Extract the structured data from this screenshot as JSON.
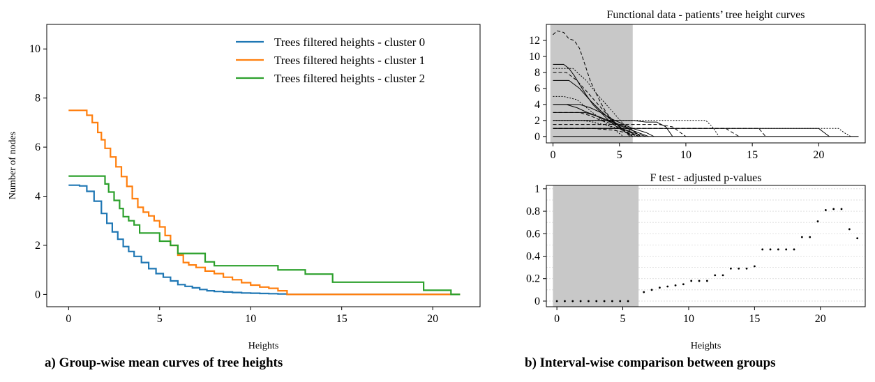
{
  "captions": {
    "a": "a) Group-wise mean curves of tree heights",
    "b": "b) Interval-wise comparison between groups"
  },
  "chart_data": [
    {
      "type": "line",
      "title": "",
      "xlabel": "Heights",
      "ylabel": "Number of nodes",
      "xlim": [
        -1.2,
        22.6
      ],
      "ylim": [
        -0.5,
        11.0
      ],
      "xticks": [
        0,
        5,
        10,
        15,
        20
      ],
      "yticks": [
        0,
        2,
        4,
        6,
        8,
        10
      ],
      "grid": false,
      "legend": "top-right",
      "series": [
        {
          "name": "Trees filtered heights - cluster 0",
          "color": "#1f77b4",
          "x": [
            0,
            0.6,
            1.0,
            1.4,
            1.8,
            2.1,
            2.4,
            2.7,
            3.0,
            3.3,
            3.6,
            4.0,
            4.4,
            4.8,
            5.2,
            5.6,
            6.0,
            6.4,
            6.8,
            7.2,
            7.6,
            8.0,
            8.5,
            9.0,
            9.5,
            10.0,
            10.5,
            11.0,
            11.5,
            12.0,
            21.5
          ],
          "y": [
            4.45,
            4.42,
            4.2,
            3.8,
            3.3,
            2.9,
            2.55,
            2.25,
            1.95,
            1.75,
            1.55,
            1.3,
            1.05,
            0.85,
            0.7,
            0.55,
            0.4,
            0.33,
            0.27,
            0.2,
            0.15,
            0.12,
            0.1,
            0.08,
            0.06,
            0.05,
            0.04,
            0.03,
            0.02,
            0.0,
            0.0
          ]
        },
        {
          "name": "Trees filtered heights - cluster 1",
          "color": "#ff7f0e",
          "x": [
            0,
            0.8,
            1.0,
            1.3,
            1.6,
            1.8,
            2.0,
            2.3,
            2.6,
            2.9,
            3.2,
            3.5,
            3.8,
            4.1,
            4.4,
            4.7,
            5.0,
            5.3,
            5.6,
            6.0,
            6.3,
            6.6,
            7.0,
            7.5,
            8.0,
            8.5,
            9.0,
            9.5,
            10.0,
            10.5,
            11.0,
            11.5,
            12.0,
            21.5
          ],
          "y": [
            7.5,
            7.5,
            7.3,
            7.0,
            6.6,
            6.3,
            5.95,
            5.6,
            5.2,
            4.8,
            4.4,
            3.9,
            3.55,
            3.35,
            3.2,
            3.0,
            2.75,
            2.4,
            2.0,
            1.6,
            1.3,
            1.2,
            1.1,
            0.95,
            0.85,
            0.7,
            0.6,
            0.48,
            0.38,
            0.3,
            0.25,
            0.15,
            0.0,
            0.0
          ]
        },
        {
          "name": "Trees filtered heights - cluster 2",
          "color": "#2ca02c",
          "x": [
            0,
            1.7,
            2.0,
            2.2,
            2.5,
            2.8,
            3.0,
            3.3,
            3.6,
            3.9,
            4.5,
            5.0,
            5.6,
            6.0,
            7.0,
            7.5,
            8.0,
            9.0,
            10.0,
            11.0,
            11.5,
            12.5,
            13.0,
            14.0,
            14.5,
            16.0,
            19.0,
            19.5,
            20.5,
            21.0,
            21.5
          ],
          "y": [
            4.82,
            4.82,
            4.5,
            4.17,
            3.83,
            3.5,
            3.17,
            3.0,
            2.83,
            2.5,
            2.5,
            2.17,
            2.0,
            1.67,
            1.67,
            1.33,
            1.17,
            1.17,
            1.17,
            1.17,
            1.0,
            1.0,
            0.83,
            0.83,
            0.5,
            0.5,
            0.5,
            0.17,
            0.17,
            0.0,
            0.0
          ]
        }
      ]
    },
    {
      "type": "line",
      "title": "Functional data - patients’ tree height curves",
      "xlabel": "",
      "ylabel": "",
      "xlim": [
        -0.5,
        23.5
      ],
      "ylim": [
        -0.8,
        14.0
      ],
      "xticks": [
        0,
        5,
        10,
        15,
        20
      ],
      "yticks": [
        0,
        2,
        4,
        6,
        8,
        10,
        12
      ],
      "grid": false,
      "legend": "none",
      "shaded_interval": [
        -0.2,
        6.0
      ],
      "curves": [
        {
          "style": "dashed",
          "x": [
            0,
            0.3,
            0.8,
            1.2,
            1.6,
            2.0,
            2.4,
            2.8,
            3.2,
            3.6,
            4.0,
            4.5,
            5.0,
            5.5,
            6.0,
            6.5
          ],
          "y": [
            12.7,
            13.2,
            13.0,
            12.2,
            12.0,
            11.0,
            9.0,
            7.0,
            5.5,
            4.2,
            3.0,
            2.0,
            1.3,
            0.6,
            0.2,
            0
          ]
        },
        {
          "style": "solid",
          "x": [
            0,
            0.8,
            1.2,
            1.6,
            2.0,
            2.5,
            3.0,
            3.6,
            4.2,
            4.8,
            5.5,
            6.0
          ],
          "y": [
            9.0,
            9.0,
            8.5,
            7.6,
            6.5,
            5.2,
            4.0,
            3.0,
            2.0,
            1.2,
            0.5,
            0
          ]
        },
        {
          "style": "dotted",
          "x": [
            0,
            1.5,
            2.5,
            3.2,
            4.0,
            4.8,
            5.5,
            6.2
          ],
          "y": [
            8.5,
            8.5,
            7.0,
            5.5,
            4.0,
            2.5,
            1.2,
            0
          ]
        },
        {
          "style": "dashed",
          "x": [
            0,
            1.0,
            1.8,
            2.6,
            3.4,
            4.2,
            5.0,
            5.8
          ],
          "y": [
            8.0,
            8.0,
            7.0,
            5.5,
            4.0,
            2.5,
            1.2,
            0
          ]
        },
        {
          "style": "solid",
          "x": [
            0,
            1.2,
            2.0,
            2.8,
            3.6,
            4.4,
            5.2,
            6.5
          ],
          "y": [
            7.0,
            7.0,
            6.0,
            4.5,
            3.2,
            2.0,
            1.0,
            0
          ]
        },
        {
          "style": "dotted",
          "x": [
            0,
            0.8,
            1.8,
            2.6,
            3.5,
            4.5,
            5.3
          ],
          "y": [
            5.0,
            5.0,
            4.6,
            3.5,
            2.3,
            1.0,
            0
          ]
        },
        {
          "style": "solid",
          "x": [
            0,
            1.4,
            2.0,
            2.8,
            3.6,
            4.4,
            5.2,
            6.0,
            7.0,
            7.6
          ],
          "y": [
            4.0,
            4.0,
            4.0,
            3.6,
            3.0,
            2.2,
            1.6,
            1.0,
            0.5,
            0
          ]
        },
        {
          "style": "solid",
          "x": [
            0,
            1.0,
            1.8,
            2.6,
            3.4,
            4.2,
            5.0,
            5.8,
            6.6
          ],
          "y": [
            4.0,
            4.0,
            3.6,
            3.0,
            2.5,
            2.0,
            1.5,
            1.0,
            0
          ]
        },
        {
          "style": "dashed",
          "x": [
            0,
            2.0,
            2.8,
            3.6,
            4.4,
            5.2,
            6.0
          ],
          "y": [
            3.0,
            3.0,
            2.6,
            2.0,
            1.6,
            1.0,
            0
          ]
        },
        {
          "style": "solid",
          "x": [
            0,
            1.6,
            2.4,
            3.2,
            4.0,
            4.8,
            5.6,
            6.4,
            7.2
          ],
          "y": [
            3.0,
            3.0,
            3.0,
            2.6,
            2.0,
            1.5,
            1.0,
            0.5,
            0
          ]
        },
        {
          "style": "dotted",
          "x": [
            0,
            2.2,
            3.0,
            4.0,
            5.0,
            6.0
          ],
          "y": [
            2.0,
            2.0,
            1.8,
            1.4,
            1.0,
            0
          ]
        },
        {
          "style": "solid",
          "x": [
            0,
            4.0,
            5.0,
            5.5,
            6.0,
            7.0
          ],
          "y": [
            1.0,
            1.0,
            1.0,
            0.8,
            0.5,
            0
          ]
        },
        {
          "style": "dashed",
          "x": [
            0,
            3.0,
            4.5,
            5.5,
            6.5
          ],
          "y": [
            1.0,
            1.0,
            0.8,
            0.5,
            0
          ]
        },
        {
          "style": "solid",
          "x": [
            0,
            6.0,
            7.0,
            7.8,
            8.5,
            9.0
          ],
          "y": [
            2.0,
            2.0,
            1.8,
            1.8,
            1.2,
            0
          ]
        },
        {
          "style": "dashed",
          "x": [
            0,
            7.0,
            8.0,
            9.0,
            9.5,
            10.0
          ],
          "y": [
            1.5,
            1.5,
            1.5,
            1.2,
            0.6,
            0
          ]
        },
        {
          "style": "dotted",
          "x": [
            0,
            9.0,
            10.0,
            11.5,
            12.0,
            12.5
          ],
          "y": [
            2.0,
            2.0,
            2.0,
            2.0,
            1.2,
            0
          ]
        },
        {
          "style": "dashed",
          "x": [
            0,
            11.0,
            13.0,
            13.5,
            14.0
          ],
          "y": [
            1.0,
            1.0,
            1.0,
            0.5,
            0
          ]
        },
        {
          "style": "dashed",
          "x": [
            0,
            14.5,
            15.5,
            16.0
          ],
          "y": [
            1.0,
            1.0,
            1.0,
            0
          ]
        },
        {
          "style": "solid",
          "x": [
            0,
            20.0,
            20.4,
            20.8
          ],
          "y": [
            1.0,
            1.0,
            0.5,
            0
          ]
        },
        {
          "style": "dotted",
          "x": [
            0,
            21.5,
            21.9,
            22.4
          ],
          "y": [
            1.0,
            1.0,
            0.5,
            0
          ]
        },
        {
          "style": "solid",
          "x": [
            0,
            23.0
          ],
          "y": [
            0,
            0
          ]
        }
      ]
    },
    {
      "type": "scatter",
      "title": "F test - adjusted p-values",
      "xlabel": "Heights",
      "ylabel": "",
      "xlim": [
        -0.8,
        23.4
      ],
      "ylim": [
        -0.05,
        1.03
      ],
      "xticks": [
        0,
        5,
        10,
        15,
        20
      ],
      "yticks": [
        0,
        0.2,
        0.4,
        0.6,
        0.8,
        1
      ],
      "ytick_labels": [
        "0",
        "0.2",
        "0.4",
        "0.6",
        "0.8",
        "1"
      ],
      "grid": true,
      "legend": "none",
      "shaded_interval": [
        -0.3,
        6.2
      ],
      "x": [
        0,
        0.6,
        1.2,
        1.8,
        2.4,
        3.0,
        3.6,
        4.2,
        4.8,
        5.4,
        6.6,
        7.2,
        7.8,
        8.4,
        9.0,
        9.6,
        10.2,
        10.8,
        11.4,
        12.0,
        12.6,
        13.2,
        13.8,
        14.4,
        15.0,
        15.6,
        16.2,
        16.8,
        17.4,
        18.0,
        18.6,
        19.2,
        19.8,
        20.4,
        21.0,
        21.6,
        22.2,
        22.8
      ],
      "y": [
        0,
        0,
        0,
        0,
        0,
        0,
        0,
        0,
        0,
        0,
        0.08,
        0.1,
        0.12,
        0.13,
        0.14,
        0.15,
        0.18,
        0.18,
        0.18,
        0.23,
        0.23,
        0.29,
        0.29,
        0.29,
        0.31,
        0.46,
        0.46,
        0.46,
        0.46,
        0.46,
        0.57,
        0.57,
        0.71,
        0.81,
        0.82,
        0.82,
        0.64,
        0.56
      ]
    }
  ]
}
